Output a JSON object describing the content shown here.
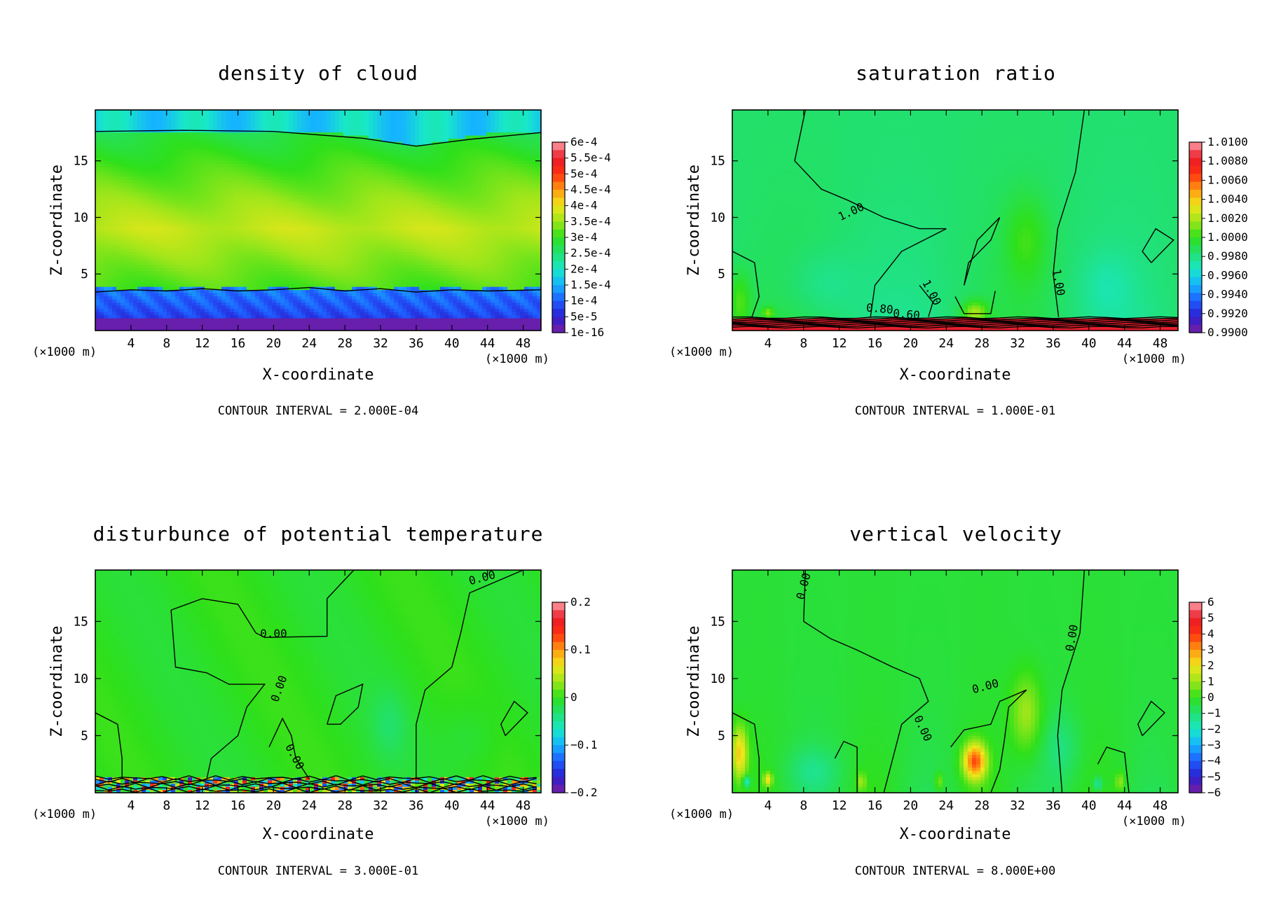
{
  "chart_data": [
    {
      "type": "heatmap",
      "title": "density of cloud",
      "xlabel": "X-coordinate",
      "ylabel": "Z-coordinate",
      "x_unit": "(×1000 m)",
      "z_unit": "(×1000 m)",
      "xlim": [
        0,
        50
      ],
      "ylim": [
        0,
        19.5
      ],
      "xticks": [
        4,
        8,
        12,
        16,
        20,
        24,
        28,
        32,
        36,
        40,
        44,
        48
      ],
      "yticks": [
        5,
        10,
        15
      ],
      "colorbar_labels": [
        "6e-4",
        "5.5e-4",
        "5e-4",
        "4.5e-4",
        "4e-4",
        "3.5e-4",
        "3e-4",
        "2.5e-4",
        "2e-4",
        "1.5e-4",
        "1e-4",
        "5e-5",
        "1e-16"
      ],
      "contour_labels": [],
      "contour_interval": "CONTOUR INTERVAL = 2.000E-04",
      "field_pattern": "stratified-cloud"
    },
    {
      "type": "heatmap",
      "title": "saturation ratio",
      "xlabel": "X-coordinate",
      "ylabel": "Z-coordinate",
      "x_unit": "(×1000 m)",
      "z_unit": "(×1000 m)",
      "xlim": [
        0,
        50
      ],
      "ylim": [
        0,
        19.5
      ],
      "xticks": [
        4,
        8,
        12,
        16,
        20,
        24,
        28,
        32,
        36,
        40,
        44,
        48
      ],
      "yticks": [
        5,
        10,
        15
      ],
      "colorbar_labels": [
        "1.0100",
        "1.0080",
        "1.0060",
        "1.0040",
        "1.0020",
        "1.0000",
        "0.9980",
        "0.9960",
        "0.9940",
        "0.9920",
        "0.9900"
      ],
      "contour_labels": [
        "1.00",
        "1.00",
        "1.00",
        "0.80",
        "0.60"
      ],
      "contour_interval": "CONTOUR INTERVAL = 1.000E-01",
      "field_pattern": "saturation"
    },
    {
      "type": "heatmap",
      "title": "disturbunce of potential temperature",
      "xlabel": "X-coordinate",
      "ylabel": "Z-coordinate",
      "x_unit": "(×1000 m)",
      "z_unit": "(×1000 m)",
      "xlim": [
        0,
        50
      ],
      "ylim": [
        0,
        19.5
      ],
      "xticks": [
        4,
        8,
        12,
        16,
        20,
        24,
        28,
        32,
        36,
        40,
        44,
        48
      ],
      "yticks": [
        5,
        10,
        15
      ],
      "colorbar_labels": [
        "0.2",
        "0.1",
        "0",
        "−0.1",
        "−0.2"
      ],
      "contour_labels": [
        "0.00",
        "0.00",
        "0.00",
        "0.00"
      ],
      "contour_interval": "CONTOUR INTERVAL = 3.000E-01",
      "field_pattern": "theta"
    },
    {
      "type": "heatmap",
      "title": "vertical velocity",
      "xlabel": "X-coordinate",
      "ylabel": "Z-coordinate",
      "x_unit": "(×1000 m)",
      "z_unit": "(×1000 m)",
      "xlim": [
        0,
        50
      ],
      "ylim": [
        0,
        19.5
      ],
      "xticks": [
        4,
        8,
        12,
        16,
        20,
        24,
        28,
        32,
        36,
        40,
        44,
        48
      ],
      "yticks": [
        5,
        10,
        15
      ],
      "colorbar_labels": [
        "6",
        "5",
        "4",
        "3",
        "2",
        "1",
        "0",
        "−1",
        "−2",
        "−3",
        "−4",
        "−5",
        "−6"
      ],
      "contour_labels": [
        "0.00",
        "0.00",
        "0.00",
        "0.00"
      ],
      "contour_interval": "CONTOUR INTERVAL = 8.000E+00",
      "field_pattern": "velocity"
    }
  ],
  "colormap": [
    "#7a1fa0",
    "#2a1fd0",
    "#1f5cff",
    "#15b4ff",
    "#18e8c8",
    "#22e070",
    "#2ee01a",
    "#9ee61a",
    "#f0e61a",
    "#ff9a10",
    "#ff3010",
    "#e81a28",
    "#ffa0a8"
  ]
}
